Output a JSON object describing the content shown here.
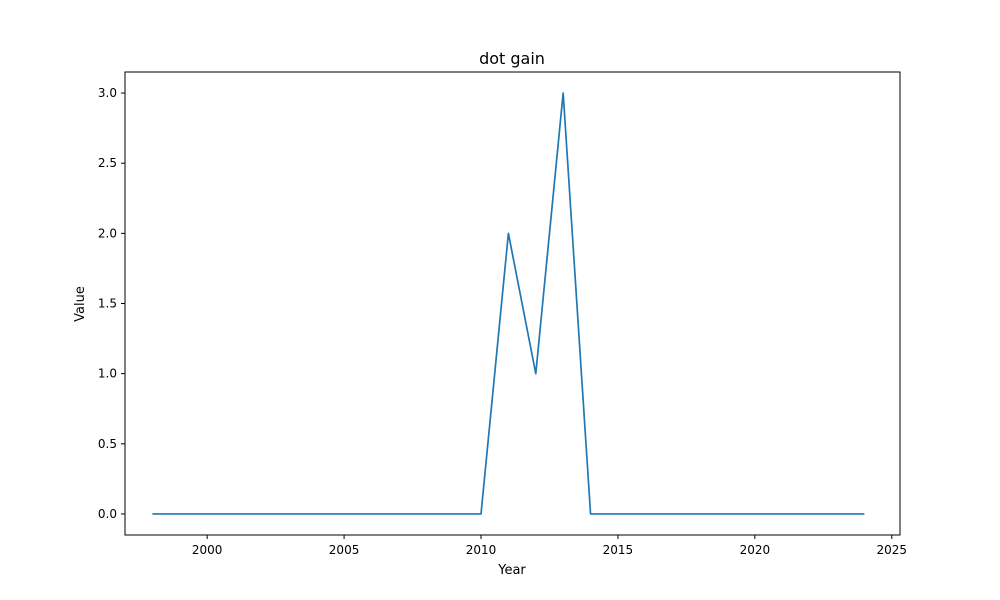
{
  "chart_data": {
    "type": "line",
    "title": "dot gain",
    "xlabel": "Year",
    "ylabel": "Value",
    "xlim": [
      1997,
      2025.3
    ],
    "ylim": [
      -0.15,
      3.15
    ],
    "x_ticks": [
      2000,
      2005,
      2010,
      2015,
      2020,
      2025
    ],
    "y_ticks": [
      "0.0",
      "0.5",
      "1.0",
      "1.5",
      "2.0",
      "2.5",
      "3.0"
    ],
    "grid": false,
    "legend": "none",
    "series": [
      {
        "color": "#1f77b4",
        "x": [
          1998,
          1999,
          2000,
          2001,
          2002,
          2003,
          2004,
          2005,
          2006,
          2007,
          2008,
          2009,
          2010,
          2011,
          2012,
          2013,
          2014,
          2015,
          2016,
          2017,
          2018,
          2019,
          2020,
          2021,
          2022,
          2023,
          2024
        ],
        "values": [
          0,
          0,
          0,
          0,
          0,
          0,
          0,
          0,
          0,
          0,
          0,
          0,
          0,
          2,
          1,
          3,
          0,
          0,
          0,
          0,
          0,
          0,
          0,
          0,
          0,
          0,
          0
        ]
      }
    ]
  }
}
